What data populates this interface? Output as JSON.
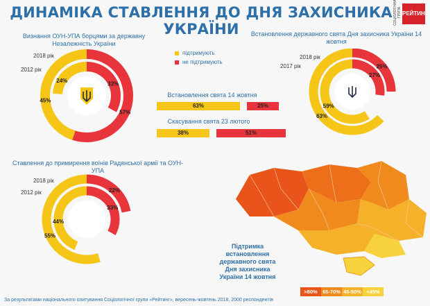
{
  "header": {
    "title": "ДИНАМІКА СТАВЛЕННЯ ДО ДНЯ ЗАХИСНИКА УКРАЇНИ",
    "logo_text": "РЕЙТИНГ",
    "logo_side": "СОЦІОЛОГІЧНА ГРУПА"
  },
  "legend": {
    "support": "підтримують",
    "not_support": "не підтримують",
    "support_color": "#f5c518",
    "not_support_color": "#e8343b"
  },
  "chart_data": [
    {
      "type": "pie",
      "title": "Визнання ОУН-УПА борцями за державну Незалежність України",
      "series": [
        {
          "name": "2018 рік",
          "values": [
            45,
            57
          ]
        },
        {
          "name": "2012 рік",
          "values": [
            24,
            33
          ]
        }
      ]
    },
    {
      "type": "pie",
      "title": "Встановлення державного свята Дня захисника України 14 жовтня",
      "series": [
        {
          "name": "2018 рік",
          "values": [
            63,
            25
          ]
        },
        {
          "name": "2017 рік",
          "values": [
            59,
            27
          ]
        }
      ]
    },
    {
      "type": "pie",
      "title": "Ставлення до примирення воїнів Радянської армії та ОУН-УПА",
      "series": [
        {
          "name": "2018 рік",
          "values": [
            55,
            22
          ]
        },
        {
          "name": "2012 рік",
          "values": [
            44,
            33
          ]
        }
      ]
    },
    {
      "type": "bar",
      "categories": [
        "Встановлення свята 14 жовтня",
        "Скасування свята 23 лютого"
      ],
      "series": [
        {
          "name": "підтримують",
          "values": [
            63,
            38
          ]
        },
        {
          "name": "не підтримують",
          "values": [
            25,
            51
          ]
        }
      ]
    }
  ],
  "labels": {
    "donut1_title": "Визнання ОУН-УПА борцями за державну Незалежність України",
    "donut2_title": "Встановлення державного свята Дня захисника України 14 жовтня",
    "donut3_title": "Ставлення до примирення воїнів Радянської армії та ОУН-УПА",
    "year_2018": "2018 рік",
    "year_2012": "2012 рік",
    "year_2017": "2017 рік",
    "bars_title_1": "Встановлення свята 14 жовтня",
    "bars_title_2": "Скасування свята 23 лютого",
    "bar1_support": "63%",
    "bar1_not": "25%",
    "bar2_support": "38%",
    "bar2_not": "51%",
    "map_title": "Підтримка встановлення державного свята Дня захисника України 14 жовтня",
    "map_legend": [
      ">80%",
      "65-70%",
      "45-50%",
      "<45%"
    ],
    "map_colors": [
      "#e8541a",
      "#f08a1c",
      "#f5b12a",
      "#f7d23c"
    ],
    "footnote": "За результатами національного опитування Соціологічної групи «Рейтинг», вересень-жовтень 2018, 2000 респондентів"
  }
}
